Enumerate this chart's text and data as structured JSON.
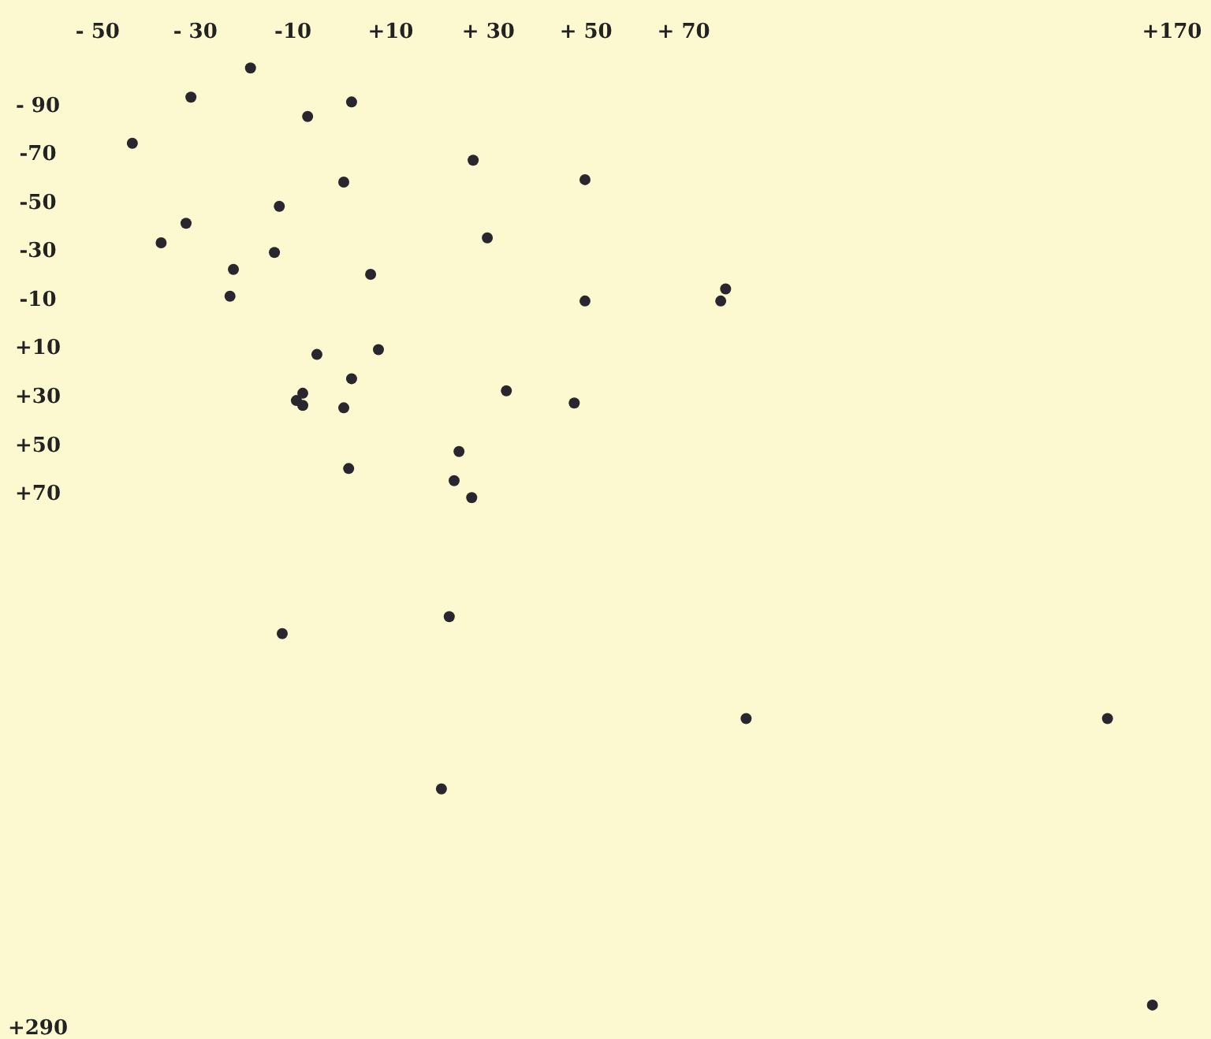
{
  "chart_data": {
    "type": "scatter",
    "marker": "circle",
    "xlim": [
      -70,
      178
    ],
    "ylim": [
      295,
      -133
    ],
    "xticks": [
      {
        "value": -50,
        "label": "- 50"
      },
      {
        "value": -30,
        "label": "- 30"
      },
      {
        "value": -10,
        "label": "-10"
      },
      {
        "value": 10,
        "label": "+10"
      },
      {
        "value": 30,
        "label": "+ 30"
      },
      {
        "value": 50,
        "label": "+ 50"
      },
      {
        "value": 70,
        "label": "+ 70"
      },
      {
        "value": 170,
        "label": "+170"
      }
    ],
    "yticks": [
      {
        "value": -90,
        "label": "- 90"
      },
      {
        "value": -70,
        "label": "-70"
      },
      {
        "value": -50,
        "label": "-50"
      },
      {
        "value": -30,
        "label": "-30"
      },
      {
        "value": -10,
        "label": "-10"
      },
      {
        "value": 10,
        "label": "+10"
      },
      {
        "value": 30,
        "label": "+30"
      },
      {
        "value": 50,
        "label": "+50"
      },
      {
        "value": 70,
        "label": "+70"
      },
      {
        "value": 290,
        "label": "+290"
      }
    ],
    "series": [
      {
        "color": "#2a2630",
        "x": [
          -18.7,
          -30.9,
          -7,
          2,
          -42.9,
          0.4,
          -12.8,
          -31.9,
          -37,
          -13.8,
          -22.2,
          -22.9,
          5.9,
          26.9,
          29.8,
          49.8,
          49.8,
          78.6,
          77.6,
          -5.1,
          7.5,
          2,
          -8,
          -9.3,
          -8,
          0.4,
          33.7,
          47.6,
          1.4,
          24,
          23,
          26.6,
          -12.2,
          22,
          82.8,
          156.8,
          20.4,
          166
        ],
        "values": [
          -105,
          -93,
          -85,
          -91,
          -74,
          -58,
          -48,
          -41,
          -33,
          -29,
          -22,
          -11,
          -20,
          -67,
          -35,
          -59,
          -9,
          -14,
          -9,
          13,
          11,
          23,
          29,
          32,
          34,
          35,
          28,
          33,
          60,
          53,
          65,
          72,
          128,
          121,
          163,
          163,
          192,
          281
        ]
      }
    ]
  }
}
